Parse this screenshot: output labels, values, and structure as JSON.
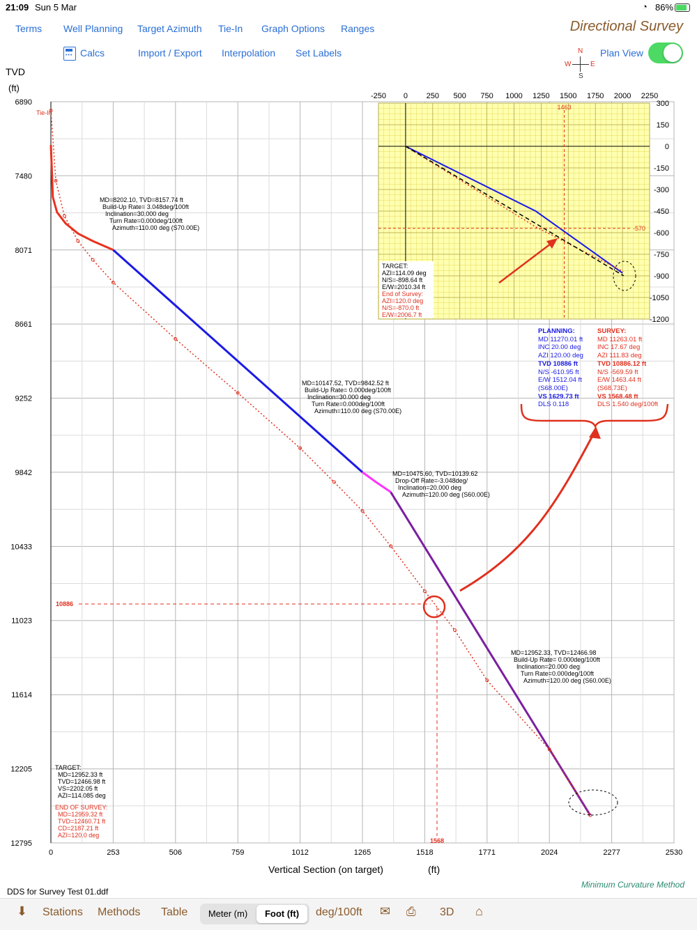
{
  "status": {
    "time": "21:09",
    "date": "Sun 5 Mar",
    "battery": "86%"
  },
  "menu": {
    "row1": [
      "Terms",
      "Well Planning",
      "Target Azimuth",
      "Tie-In",
      "Graph Options",
      "Ranges"
    ],
    "row2": [
      "Calcs",
      "Import / Export",
      "Interpolation",
      "Set Labels"
    ]
  },
  "app_title": "Directional Survey",
  "compass": {
    "n": "N",
    "s": "S",
    "e": "E",
    "w": "W"
  },
  "plan_view": {
    "label": "Plan View",
    "on": true
  },
  "colors": {
    "link": "#2a6fd6",
    "brand": "#8a5a2b",
    "planning": "#1a1ae6",
    "survey": "#e0301e",
    "grid_bg": "#ffffb0",
    "toggle": "#4cd964"
  },
  "chart_data": [
    {
      "type": "line",
      "ylabel": "TVD",
      "ylabel_unit": "(ft)",
      "xlabel": "Vertical Section (on target)",
      "xlabel_unit": "(ft)",
      "y_ticks": [
        6890,
        7480,
        8071,
        8661,
        9252,
        9842,
        10433,
        11023,
        11614,
        12205,
        12795
      ],
      "x_ticks": [
        0,
        253,
        506,
        759,
        1012,
        1265,
        1518,
        1771,
        2024,
        2277,
        2530
      ],
      "xlim": [
        0,
        2530
      ],
      "ylim": [
        6890,
        12795
      ],
      "tie_in_label": "Tie-In",
      "marker": {
        "tvd_label": "10886",
        "vs_label": "1568"
      },
      "series": [
        {
          "color": "#e8321e",
          "style": "solid",
          "x": [
            0,
            8,
            25,
            60,
            110,
            170,
            253
          ],
          "y": [
            7235,
            7650,
            7770,
            7860,
            7940,
            8000,
            8071
          ]
        },
        {
          "color": "#1a1ae6",
          "style": "solid",
          "x": [
            253,
            1265
          ],
          "y": [
            8071,
            9842
          ]
        },
        {
          "color": "#ff33ff",
          "style": "solid",
          "x": [
            1265,
            1320,
            1380
          ],
          "y": [
            9842,
            9920,
            10000
          ]
        },
        {
          "color": "#7a1fa0",
          "style": "solid",
          "x": [
            1380,
            2190
          ],
          "y": [
            10000,
            12575
          ]
        },
        {
          "color": "#e0301e",
          "style": "dotted",
          "x": [
            0,
            20,
            55,
            110,
            170,
            253,
            506,
            759,
            1012,
            1150,
            1265,
            1380,
            1518,
            1640,
            1771,
            2024,
            2190
          ],
          "y": [
            6960,
            7520,
            7800,
            8000,
            8150,
            8330,
            8780,
            9210,
            9650,
            9920,
            10150,
            10430,
            10790,
            11100,
            11500,
            12050,
            12575
          ]
        }
      ],
      "annotations": [
        {
          "color": "#000000",
          "lines": [
            "MD=8202.10, TVD=8157.74 ft",
            "Build-Up Rate= 3.048deg/100ft",
            "Inclination=30.000 deg",
            "Turn Rate=0.000deg/100ft",
            "Azimuth=110.00 deg (S70.00E)"
          ]
        },
        {
          "color": "#000000",
          "lines": [
            "MD=10147.52, TVD=9842.52 ft",
            "Build-Up Rate= 0.000deg/100ft",
            "Inclination=30.000 deg",
            "Turn Rate=0.000deg/100ft",
            "Azimuth=110.00 deg (S70.00E)"
          ]
        },
        {
          "color": "#000000",
          "lines": [
            "MD=10475.60, TVD=10139.62",
            "Drop-Off Rate=-3.048deg/",
            "Inclination=20.000 deg",
            "Azimuth=120.00 deg (S60.00E)"
          ]
        },
        {
          "color": "#000000",
          "lines": [
            "MD=12952.33, TVD=12466.98",
            "Build-Up Rate= 0.000deg/100ft",
            "Inclination=20.000 deg",
            "Turn Rate=0.000deg/100ft",
            "Azimuth=120.00 deg (S60.00E)"
          ]
        },
        {
          "color": "#000000",
          "lines": [
            "TARGET:",
            "MD=12952.33 ft",
            "TVD=12466.98 ft",
            "VS=2202.05 ft",
            "AZI=114.085 deg"
          ]
        },
        {
          "color": "#e0301e",
          "lines": [
            "END OF SURVEY:",
            "MD=12959.32  ft",
            "TVD=12460.71  ft",
            "CD=2187.21  ft",
            "AZI=120.0 deg"
          ]
        }
      ]
    },
    {
      "type": "line",
      "x_ticks": [
        -250,
        0,
        250,
        500,
        750,
        1000,
        1250,
        1500,
        1750,
        2000,
        2250
      ],
      "y_ticks": [
        300,
        150,
        0,
        -150,
        -300,
        -450,
        -600,
        -750,
        -900,
        -1050,
        -1200
      ],
      "xlim": [
        -250,
        2250
      ],
      "ylim": [
        -1200,
        300
      ],
      "marker": {
        "ew_label": "1463",
        "ns_label": "-570"
      },
      "series": [
        {
          "color": "#1a1ae6",
          "style": "solid",
          "x": [
            0,
            1200,
            2000
          ],
          "y": [
            0,
            -450,
            -880
          ]
        },
        {
          "color": "#e0301e",
          "style": "dotted",
          "x": [
            0,
            1200,
            2007
          ],
          "y": [
            0,
            -560,
            -870
          ]
        },
        {
          "color": "#000000",
          "style": "dashed",
          "x": [
            0,
            2010
          ],
          "y": [
            0,
            -899
          ]
        }
      ],
      "annotations": [
        {
          "color": "#000000",
          "lines": [
            "TARGET:",
            "AZI=114.09 deg",
            "N/S=-898.64 ft",
            "E/W=2010.34 ft"
          ]
        },
        {
          "color": "#e0301e",
          "lines": [
            "End of Survey:",
            "AZI=120.0 deg",
            "N/S=-870.0  ft",
            "E/W=2006.7  ft"
          ]
        }
      ]
    }
  ],
  "comparison": {
    "planning": {
      "title": "PLANNING:",
      "lines": [
        "MD 11270.01 ft",
        "INC 20.00 deg",
        "AZI 120.00 deg",
        "TVD 10886 ft",
        "N/S -610.95 ft",
        "E/W 1512.04 ft",
        "(S68.00E)",
        "VS 1629.73 ft",
        "DLS 0.118"
      ]
    },
    "survey": {
      "title": "SURVEY:",
      "lines": [
        "MD 11263.01 ft",
        "INC 17.67 deg",
        "AZI 111.83 deg",
        "TVD 10886.12 ft",
        "N/S -569.59 ft",
        "E/W 1463.44 ft",
        "(S68.73E)",
        "VS 1568.48 ft",
        "DLS 1.540 deg/100ft"
      ]
    }
  },
  "file_name": "DDS for Survey Test 01.ddf",
  "method": "Minimum Curvature Method",
  "bottom_bar": {
    "stations": "Stations",
    "methods": "Methods",
    "table": "Table",
    "meter": "Meter (m)",
    "foot": "Foot (ft)",
    "dls_unit": "deg/100ft",
    "three_d": "3D"
  }
}
